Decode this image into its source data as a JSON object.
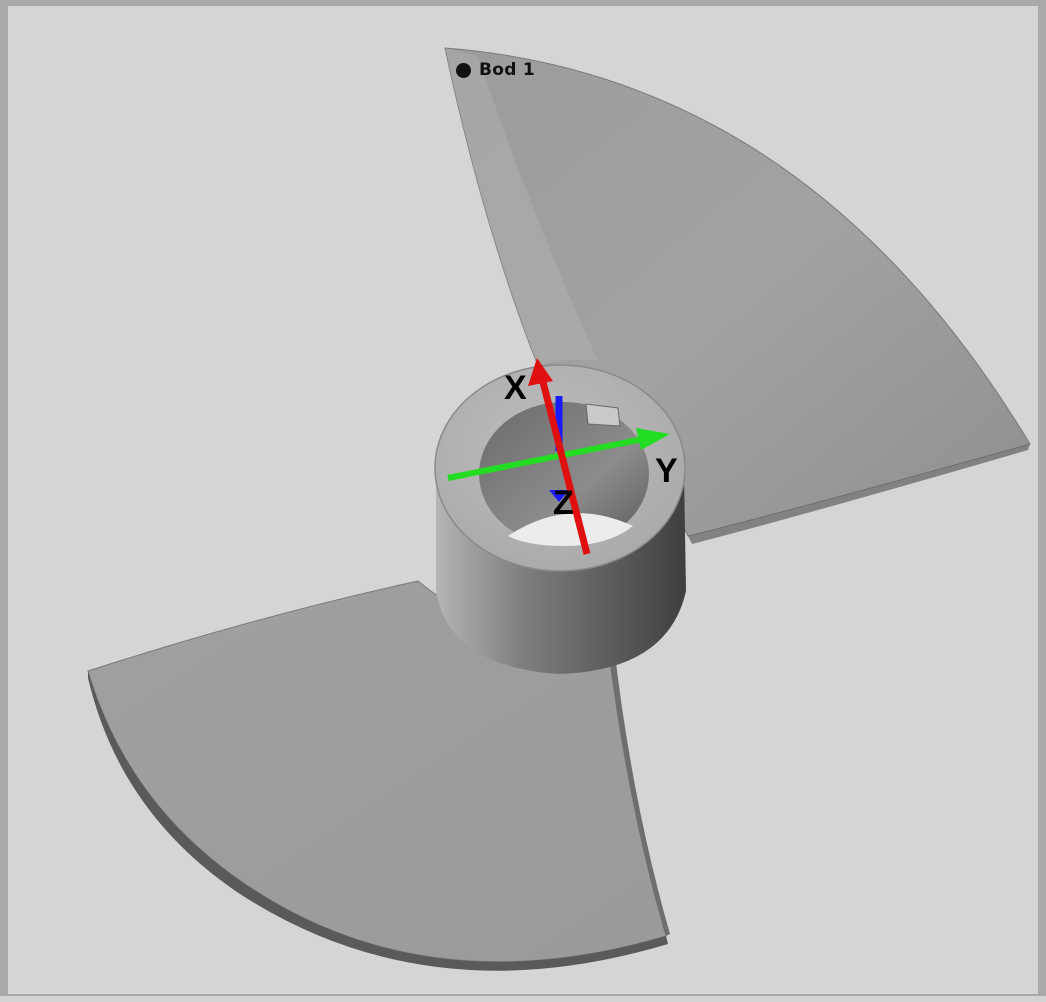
{
  "viewport": {
    "background": "#d5d5d5",
    "frame_color": "#a9a9a9"
  },
  "model": {
    "type": "propeller",
    "blade_count": 2,
    "part_color": "#a3a3a3"
  },
  "point": {
    "label": "Bod 1",
    "marker_color": "#111111"
  },
  "axes": {
    "x": {
      "label": "X",
      "color": "#e01010"
    },
    "y": {
      "label": "Y",
      "color": "#22dd22"
    },
    "z": {
      "label": "Z",
      "color": "#1a1aff"
    }
  }
}
